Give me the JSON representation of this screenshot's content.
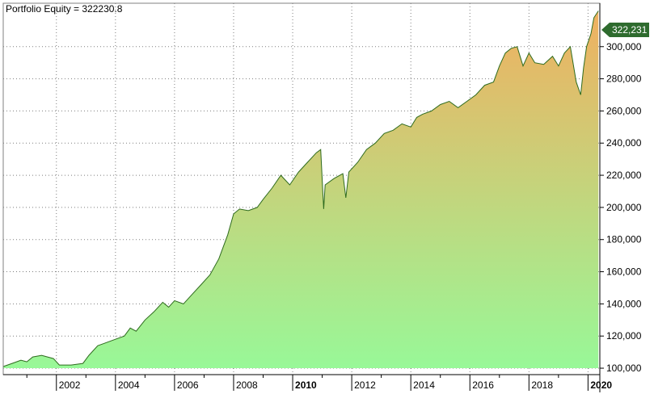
{
  "chart_data": {
    "type": "area",
    "title": "Portfolio Equity = 322230.8",
    "last_value_label": "322,231",
    "y_ticks": [
      "100,000",
      "120,000",
      "140,000",
      "160,000",
      "180,000",
      "200,000",
      "220,000",
      "240,000",
      "260,000",
      "280,000",
      "300,000"
    ],
    "y_tick_values": [
      100000,
      120000,
      140000,
      160000,
      180000,
      200000,
      220000,
      240000,
      260000,
      280000,
      300000
    ],
    "x_ticks": [
      {
        "label": "2002",
        "year": 2002,
        "bold": false
      },
      {
        "label": "2004",
        "year": 2004,
        "bold": false
      },
      {
        "label": "2006",
        "year": 2006,
        "bold": false
      },
      {
        "label": "2008",
        "year": 2008,
        "bold": false
      },
      {
        "label": "2010",
        "year": 2010,
        "bold": true
      },
      {
        "label": "2012",
        "year": 2012,
        "bold": false
      },
      {
        "label": "2014",
        "year": 2014,
        "bold": false
      },
      {
        "label": "2016",
        "year": 2016,
        "bold": false
      },
      {
        "label": "2018",
        "year": 2018,
        "bold": false
      },
      {
        "label": "2020",
        "year": 2020,
        "bold": true
      }
    ],
    "ylim": [
      96000,
      327000
    ],
    "xlim": [
      2000.2,
      2020.4
    ],
    "grid": true,
    "colors": {
      "fill_top": "#f0b060",
      "fill_bottom": "#98f898",
      "line": "#2e6b1e",
      "last_value_bg": "#2e6b2e",
      "grid": "#000000"
    },
    "series": [
      {
        "x": [
          2000.2,
          2000.5,
          2000.8,
          2001.0,
          2001.2,
          2001.5,
          2001.7,
          2001.9,
          2002.1,
          2002.5,
          2002.9,
          2003.1,
          2003.4,
          2003.7,
          2004.0,
          2004.3,
          2004.5,
          2004.7,
          2005.0,
          2005.3,
          2005.6,
          2005.8,
          2006.0,
          2006.3,
          2006.6,
          2006.9,
          2007.2,
          2007.5,
          2007.8,
          2008.0,
          2008.2,
          2008.5,
          2008.8,
          2009.0,
          2009.3,
          2009.6,
          2009.9,
          2010.2,
          2010.5,
          2010.8,
          2010.95,
          2011.05,
          2011.1,
          2011.4,
          2011.7,
          2011.8,
          2011.9,
          2012.2,
          2012.5,
          2012.8,
          2013.1,
          2013.4,
          2013.7,
          2014.0,
          2014.2,
          2014.4,
          2014.7,
          2015.0,
          2015.3,
          2015.6,
          2015.9,
          2016.2,
          2016.5,
          2016.8,
          2017.0,
          2017.2,
          2017.4,
          2017.6,
          2017.8,
          2018.0,
          2018.2,
          2018.5,
          2018.8,
          2019.0,
          2019.2,
          2019.4,
          2019.6,
          2019.75,
          2019.85,
          2019.95,
          2020.1,
          2020.2,
          2020.35
        ],
        "y": [
          101000,
          103000,
          105000,
          104000,
          107000,
          108000,
          107000,
          106000,
          102000,
          102000,
          103000,
          108000,
          114000,
          116000,
          118000,
          120000,
          125000,
          123000,
          130000,
          135000,
          141000,
          138000,
          142000,
          140000,
          146000,
          152000,
          158000,
          168000,
          183000,
          196000,
          199000,
          198000,
          200000,
          205000,
          212000,
          220000,
          214000,
          222000,
          228000,
          234000,
          236000,
          199000,
          214000,
          218000,
          221000,
          206000,
          222000,
          228000,
          236000,
          240000,
          246000,
          248000,
          252000,
          250000,
          256000,
          258000,
          260000,
          264000,
          266000,
          262000,
          266000,
          270000,
          276000,
          278000,
          288000,
          296000,
          299000,
          300000,
          288000,
          296000,
          290000,
          289000,
          294000,
          288000,
          296000,
          300000,
          278000,
          270000,
          287000,
          300000,
          308000,
          318000,
          322231
        ]
      }
    ]
  }
}
